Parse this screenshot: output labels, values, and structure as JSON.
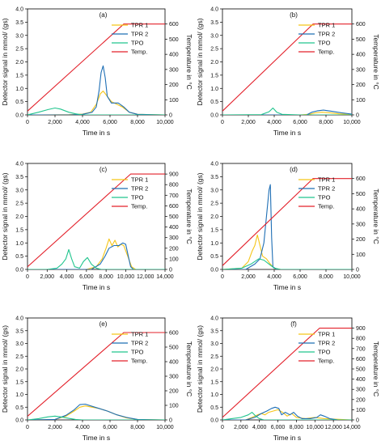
{
  "figure": {
    "series_defs": [
      {
        "key": "tpr1",
        "name": "TPR 1",
        "color": "#f5c518"
      },
      {
        "key": "tpr2",
        "name": "TPR 2",
        "color": "#1f6fb5"
      },
      {
        "key": "tpo",
        "name": "TPO",
        "color": "#21c58e"
      },
      {
        "key": "temp",
        "name": "Temp.",
        "color": "#e3202a"
      }
    ]
  },
  "chart_data": [
    {
      "type": "line",
      "panel_label": "(a)",
      "xlabel": "Time in s",
      "ylabel": "Detector signal in mmol/ (gs)",
      "y2label": "Temperature in °C",
      "xlim": [
        0,
        10000
      ],
      "xticks": [
        0,
        2000,
        4000,
        6000,
        8000,
        10000
      ],
      "xtick_labels": [
        "0",
        "2,000",
        "4,000",
        "6,000",
        "8,000",
        "10,000"
      ],
      "ylim": [
        0,
        4
      ],
      "yticks": [
        0,
        0.5,
        1,
        1.5,
        2,
        2.5,
        3,
        3.5,
        4
      ],
      "ytick_labels": [
        "0.0",
        "0.5",
        "1.0",
        "1.5",
        "2.0",
        "2.5",
        "3.0",
        "3.5",
        "4.0"
      ],
      "y2lim": [
        0,
        700
      ],
      "y2ticks": [
        0,
        100,
        200,
        300,
        400,
        500,
        600
      ],
      "y2tick_labels": [
        "0",
        "100",
        "200",
        "300",
        "400",
        "500",
        "600"
      ],
      "legend": "top-right",
      "series": [
        {
          "key": "tpr1",
          "x": [
            0,
            1000,
            3000,
            4000,
            4600,
            5000,
            5300,
            5500,
            5800,
            6100,
            6500,
            6900,
            7400,
            8000,
            10000
          ],
          "y": [
            0,
            0,
            0.01,
            0.03,
            0.1,
            0.4,
            0.8,
            0.9,
            0.7,
            0.5,
            0.4,
            0.3,
            0.1,
            0.02,
            0
          ]
        },
        {
          "key": "tpr2",
          "x": [
            0,
            1000,
            3000,
            4000,
            4700,
            5000,
            5200,
            5350,
            5500,
            5650,
            5800,
            6100,
            6600,
            7000,
            7400,
            8000,
            10000
          ],
          "y": [
            0,
            0,
            0,
            0.02,
            0.1,
            0.3,
            0.9,
            1.6,
            1.85,
            1.4,
            0.7,
            0.45,
            0.45,
            0.3,
            0.1,
            0.02,
            0
          ]
        },
        {
          "key": "tpo",
          "x": [
            0,
            800,
            1500,
            2000,
            2400,
            3000,
            3500,
            4000,
            10000
          ],
          "y": [
            0,
            0.1,
            0.2,
            0.26,
            0.22,
            0.1,
            0.04,
            0,
            0
          ]
        },
        {
          "key": "temp",
          "x": [
            0,
            7000,
            10000
          ],
          "y": [
            25,
            600,
            600
          ]
        }
      ]
    },
    {
      "type": "line",
      "panel_label": "(b)",
      "xlabel": "Time in s",
      "ylabel": "Detector signal in mmol/ (gs)",
      "y2label": "Temperature in °C",
      "xlim": [
        0,
        10000
      ],
      "xticks": [
        0,
        2000,
        4000,
        6000,
        8000,
        10000
      ],
      "xtick_labels": [
        "0",
        "2,000",
        "4,000",
        "6,000",
        "8,000",
        "10,000"
      ],
      "ylim": [
        0,
        4
      ],
      "yticks": [
        0,
        0.5,
        1,
        1.5,
        2,
        2.5,
        3,
        3.5,
        4
      ],
      "ytick_labels": [
        "0.0",
        "0.5",
        "1.0",
        "1.5",
        "2.0",
        "2.5",
        "3.0",
        "3.5",
        "4.0"
      ],
      "y2lim": [
        0,
        700
      ],
      "y2ticks": [
        0,
        100,
        200,
        300,
        400,
        500,
        600
      ],
      "y2tick_labels": [
        "0",
        "100",
        "200",
        "300",
        "400",
        "500",
        "600"
      ],
      "legend": "top-right",
      "series": [
        {
          "key": "tpr1",
          "x": [
            0,
            6000,
            6800,
            7200,
            7700,
            8300,
            9000,
            10000
          ],
          "y": [
            0,
            0,
            0.03,
            0.08,
            0.1,
            0.08,
            0.04,
            0.01
          ]
        },
        {
          "key": "tpr2",
          "x": [
            0,
            6500,
            6900,
            7300,
            7800,
            8400,
            9200,
            10000
          ],
          "y": [
            0,
            0,
            0.1,
            0.15,
            0.18,
            0.14,
            0.08,
            0.03
          ]
        },
        {
          "key": "tpo",
          "x": [
            0,
            3000,
            3600,
            3900,
            4200,
            4600,
            6000,
            10000
          ],
          "y": [
            0,
            0.01,
            0.12,
            0.26,
            0.1,
            0.02,
            0,
            0
          ]
        },
        {
          "key": "temp",
          "x": [
            0,
            7000,
            10000
          ],
          "y": [
            25,
            600,
            600
          ]
        }
      ]
    },
    {
      "type": "line",
      "panel_label": "(c)",
      "xlabel": "Time in s",
      "ylabel": "Detector signal in mmol/ (gs)",
      "y2label": "Temperature in °C",
      "xlim": [
        0,
        14000
      ],
      "xticks": [
        0,
        2000,
        4000,
        6000,
        8000,
        10000,
        12000,
        14000
      ],
      "xtick_labels": [
        "0",
        "2,000",
        "4,000",
        "6,000",
        "8,000",
        "10,000",
        "12,000",
        "14,000"
      ],
      "ylim": [
        0,
        4
      ],
      "yticks": [
        0,
        0.5,
        1,
        1.5,
        2,
        2.5,
        3,
        3.5,
        4
      ],
      "ytick_labels": [
        "0.0",
        "0.5",
        "1.0",
        "1.5",
        "2.0",
        "2.5",
        "3.0",
        "3.5",
        "4.0"
      ],
      "y2lim": [
        0,
        1000
      ],
      "y2ticks": [
        0,
        100,
        200,
        300,
        400,
        500,
        600,
        700,
        800,
        900
      ],
      "y2tick_labels": [
        "0",
        "100",
        "200",
        "300",
        "400",
        "500",
        "600",
        "700",
        "800",
        "900"
      ],
      "legend": "top-right",
      "series": [
        {
          "key": "tpr1",
          "x": [
            0,
            6000,
            7000,
            7600,
            8000,
            8300,
            8600,
            8900,
            9200,
            9500,
            9800,
            10200,
            10600,
            11000,
            14000
          ],
          "y": [
            0,
            0,
            0.1,
            0.4,
            0.8,
            1.15,
            0.9,
            1.1,
            0.85,
            0.95,
            0.9,
            0.5,
            0.1,
            0,
            0
          ]
        },
        {
          "key": "tpr2",
          "x": [
            0,
            6500,
            7400,
            7900,
            8300,
            8800,
            9300,
            9700,
            10000,
            10200,
            10500,
            10800,
            14000
          ],
          "y": [
            0,
            0,
            0.2,
            0.5,
            0.8,
            0.9,
            0.9,
            1.0,
            0.95,
            0.6,
            0.1,
            0,
            0
          ]
        },
        {
          "key": "tpo",
          "x": [
            0,
            2000,
            3000,
            3500,
            3900,
            4200,
            4500,
            4800,
            5300,
            5700,
            6100,
            6500,
            7000,
            7500,
            8000,
            14000
          ],
          "y": [
            0,
            0,
            0.05,
            0.2,
            0.4,
            0.75,
            0.4,
            0.1,
            0.05,
            0.3,
            0.45,
            0.2,
            0.05,
            0,
            0,
            0
          ]
        },
        {
          "key": "temp",
          "x": [
            0,
            10500,
            14000
          ],
          "y": [
            25,
            900,
            900
          ]
        }
      ]
    },
    {
      "type": "line",
      "panel_label": "(d)",
      "xlabel": "Time in s",
      "ylabel": "Detector signal in mmol/ (gs)",
      "y2label": "Temperature in °C",
      "xlim": [
        0,
        10000
      ],
      "xticks": [
        0,
        2000,
        4000,
        6000,
        8000,
        10000
      ],
      "xtick_labels": [
        "0",
        "2,000",
        "4,000",
        "6,000",
        "8,000",
        "10,000"
      ],
      "ylim": [
        0,
        4
      ],
      "yticks": [
        0,
        0.5,
        1,
        1.5,
        2,
        2.5,
        3,
        3.5,
        4
      ],
      "ytick_labels": [
        "0.0",
        "0.5",
        "1.0",
        "1.5",
        "2.0",
        "2.5",
        "3.0",
        "3.5",
        "4.0"
      ],
      "y2lim": [
        0,
        700
      ],
      "y2ticks": [
        0,
        100,
        200,
        300,
        400,
        500,
        600
      ],
      "y2tick_labels": [
        "0",
        "100",
        "200",
        "300",
        "400",
        "500",
        "600"
      ],
      "legend": "top-right",
      "series": [
        {
          "key": "tpr1",
          "x": [
            0,
            1500,
            2000,
            2300,
            2500,
            2700,
            2900,
            3100,
            3400,
            3700,
            4000,
            4500,
            10000
          ],
          "y": [
            0,
            0.05,
            0.3,
            0.7,
            0.9,
            1.3,
            0.9,
            0.5,
            0.4,
            0.2,
            0.05,
            0,
            0
          ]
        },
        {
          "key": "tpr2",
          "x": [
            0,
            1800,
            2500,
            2900,
            3200,
            3400,
            3600,
            3700,
            3800,
            3900,
            4200,
            4800,
            10000
          ],
          "y": [
            0,
            0,
            0.2,
            0.4,
            1.0,
            2.0,
            3.0,
            3.2,
            1.2,
            0.1,
            0,
            0,
            0
          ]
        },
        {
          "key": "tpo",
          "x": [
            0,
            1500,
            2200,
            2800,
            3200,
            3600,
            4000,
            4500,
            5000,
            10000
          ],
          "y": [
            0,
            0.05,
            0.2,
            0.4,
            0.35,
            0.2,
            0.05,
            0,
            0,
            0
          ]
        },
        {
          "key": "temp",
          "x": [
            0,
            7000,
            10000
          ],
          "y": [
            25,
            600,
            600
          ]
        }
      ]
    },
    {
      "type": "line",
      "panel_label": "(e)",
      "xlabel": "Time in s",
      "ylabel": "Detector signal in mmol/ (gs)",
      "y2label": "Temperature in °C",
      "xlim": [
        0,
        10000
      ],
      "xticks": [
        0,
        2000,
        4000,
        6000,
        8000,
        10000
      ],
      "xtick_labels": [
        "0",
        "2,000",
        "4,000",
        "6,000",
        "8,000",
        "10,000"
      ],
      "ylim": [
        0,
        4
      ],
      "yticks": [
        0,
        0.5,
        1,
        1.5,
        2,
        2.5,
        3,
        3.5,
        4
      ],
      "ytick_labels": [
        "0.0",
        "0.5",
        "1.0",
        "1.5",
        "2.0",
        "2.5",
        "3.0",
        "3.5",
        "4.0"
      ],
      "y2lim": [
        0,
        700
      ],
      "y2ticks": [
        0,
        100,
        200,
        300,
        400,
        500,
        600
      ],
      "y2tick_labels": [
        "0",
        "100",
        "200",
        "300",
        "400",
        "500",
        "600"
      ],
      "legend": "top-right",
      "series": [
        {
          "key": "tpr1",
          "x": [
            0,
            2000,
            2800,
            3400,
            3800,
            4200,
            4700,
            5200,
            5800,
            6500,
            7200,
            8000,
            10000
          ],
          "y": [
            0,
            0.02,
            0.15,
            0.35,
            0.5,
            0.55,
            0.5,
            0.45,
            0.35,
            0.2,
            0.08,
            0.02,
            0
          ]
        },
        {
          "key": "tpr2",
          "x": [
            0,
            2000,
            2800,
            3400,
            3800,
            4200,
            4600,
            5200,
            5800,
            6500,
            7200,
            8000,
            10000
          ],
          "y": [
            0,
            0.02,
            0.18,
            0.4,
            0.6,
            0.62,
            0.55,
            0.45,
            0.35,
            0.2,
            0.1,
            0.02,
            0
          ]
        },
        {
          "key": "tpo",
          "x": [
            0,
            800,
            1500,
            2000,
            2400,
            3000,
            3500,
            4000,
            10000
          ],
          "y": [
            0,
            0.05,
            0.12,
            0.15,
            0.12,
            0.06,
            0.02,
            0,
            0
          ]
        },
        {
          "key": "temp",
          "x": [
            0,
            7000,
            10000
          ],
          "y": [
            25,
            600,
            600
          ]
        }
      ]
    },
    {
      "type": "line",
      "panel_label": "(f)",
      "xlabel": "Time in s",
      "ylabel": "Detector signal in mmol/ (gs)",
      "y2label": "Temperature in °C",
      "xlim": [
        0,
        14000
      ],
      "xticks": [
        0,
        2000,
        4000,
        6000,
        8000,
        10000,
        12000,
        14000
      ],
      "xtick_labels": [
        "0",
        "2,000",
        "4,000",
        "6,000",
        "8,000",
        "10,000",
        "12,000",
        "14,000"
      ],
      "ylim": [
        0,
        4
      ],
      "yticks": [
        0,
        0.5,
        1,
        1.5,
        2,
        2.5,
        3,
        3.5,
        4
      ],
      "ytick_labels": [
        "0.0",
        "0.5",
        "1.0",
        "1.5",
        "2.0",
        "2.5",
        "3.0",
        "3.5",
        "4.0"
      ],
      "y2lim": [
        0,
        1000
      ],
      "y2ticks": [
        0,
        100,
        200,
        300,
        400,
        500,
        600,
        700,
        800,
        900
      ],
      "y2tick_labels": [
        "0",
        "100",
        "200",
        "300",
        "400",
        "500",
        "600",
        "700",
        "800",
        "900"
      ],
      "legend": "top-right",
      "series": [
        {
          "key": "tpr1",
          "x": [
            0,
            2500,
            3200,
            3800,
            4200,
            4600,
            5000,
            5500,
            6000,
            6500,
            7000,
            7500,
            8000,
            9000,
            10000,
            11000,
            14000
          ],
          "y": [
            0,
            0,
            0.1,
            0.2,
            0.25,
            0.2,
            0.3,
            0.35,
            0.4,
            0.3,
            0.15,
            0.25,
            0.1,
            0.05,
            0.1,
            0.05,
            0
          ]
        },
        {
          "key": "tpr2",
          "x": [
            0,
            2500,
            3500,
            4200,
            4800,
            5300,
            5700,
            6100,
            6400,
            6800,
            7300,
            7700,
            8100,
            8600,
            9500,
            10200,
            10600,
            11000,
            11600,
            12500,
            14000
          ],
          "y": [
            0,
            0,
            0.1,
            0.25,
            0.35,
            0.45,
            0.5,
            0.45,
            0.2,
            0.3,
            0.2,
            0.3,
            0.15,
            0.05,
            0.05,
            0.1,
            0.2,
            0.15,
            0.05,
            0,
            0
          ]
        },
        {
          "key": "tpo",
          "x": [
            0,
            1000,
            2000,
            2800,
            3200,
            3600,
            4000,
            4500,
            14000
          ],
          "y": [
            0,
            0.05,
            0.1,
            0.2,
            0.3,
            0.15,
            0.05,
            0,
            0
          ]
        },
        {
          "key": "temp",
          "x": [
            0,
            10500,
            14000
          ],
          "y": [
            25,
            900,
            900
          ]
        }
      ]
    }
  ]
}
